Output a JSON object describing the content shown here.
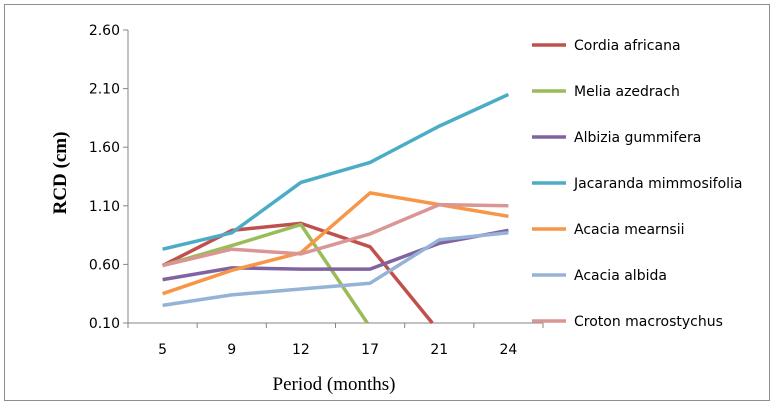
{
  "chart_data": {
    "type": "line",
    "title": "",
    "xlabel": "Period (months)",
    "ylabel": "RCD (cm)",
    "categories": [
      "5",
      "9",
      "12",
      "17",
      "21",
      "24"
    ],
    "y_ticks": [
      "0.10",
      "0.60",
      "1.10",
      "1.60",
      "2.10",
      "2.60"
    ],
    "ylim": [
      0.1,
      2.6
    ],
    "grid": false,
    "legend_position": "right",
    "series": [
      {
        "name": "Cordia africana",
        "color": "#C0504D",
        "values": [
          0.59,
          0.89,
          0.95,
          0.75,
          0.1,
          null
        ],
        "end_x": 20.6
      },
      {
        "name": "Melia azedrach",
        "color": "#9BBB59",
        "values": [
          0.59,
          0.76,
          0.94,
          0.1,
          null,
          null
        ],
        "end_x": 16.8
      },
      {
        "name": "Albizia gummifera",
        "color": "#8064A2",
        "values": [
          0.47,
          0.57,
          0.56,
          0.56,
          0.78,
          0.89
        ]
      },
      {
        "name": "Jacaranda mimmosifolia",
        "color": "#4BACC6",
        "values": [
          0.73,
          0.87,
          1.3,
          1.47,
          1.78,
          2.05
        ]
      },
      {
        "name": "Acacia mearnsii",
        "color": "#F79646",
        "values": [
          0.35,
          0.55,
          0.7,
          1.21,
          1.11,
          1.01
        ]
      },
      {
        "name": "Acacia albida",
        "color": "#95B3D7",
        "values": [
          0.25,
          0.34,
          0.39,
          0.44,
          0.81,
          0.87
        ]
      },
      {
        "name": "Croton macrostychus",
        "color": "#D99694",
        "values": [
          0.59,
          0.73,
          0.69,
          0.86,
          1.11,
          1.1
        ]
      }
    ]
  }
}
